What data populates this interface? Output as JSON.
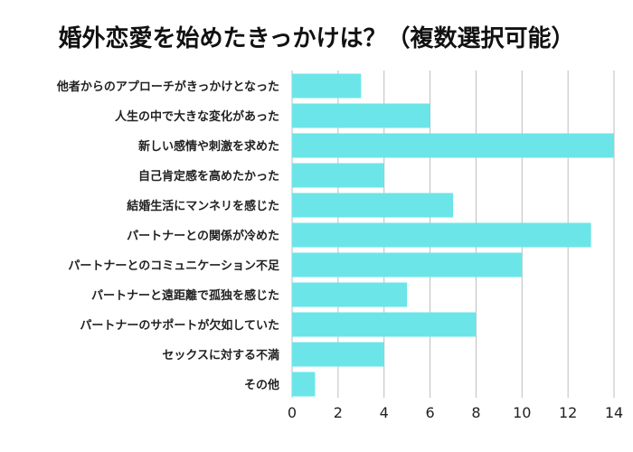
{
  "chart_data": {
    "type": "bar",
    "orientation": "horizontal",
    "title": "婚外恋愛を始めたきっかけは？（複数選択可能）",
    "xlabel": "",
    "ylabel": "",
    "categories": [
      "他者からのアプローチがきっかけとなった",
      "人生の中で大きな変化があった",
      "新しい感情や刺激を求めた",
      "自己肯定感を高めたかった",
      "結婚生活にマンネリを感じた",
      "パートナーとの関係が冷めた",
      "パートナーとのコミュニケーション不足",
      "パートナーと遠距離で孤独を感じた",
      "パートナーのサポートが欠如していた",
      "セックスに対する不満",
      "その他"
    ],
    "values": [
      3,
      6,
      14,
      4,
      7,
      13,
      10,
      5,
      8,
      4,
      1
    ],
    "xlim": [
      0,
      14
    ],
    "xticks": [
      "0",
      "2",
      "4",
      "6",
      "8",
      "10",
      "12",
      "14"
    ],
    "grid": true,
    "bar_color": "#6ce5e8"
  }
}
